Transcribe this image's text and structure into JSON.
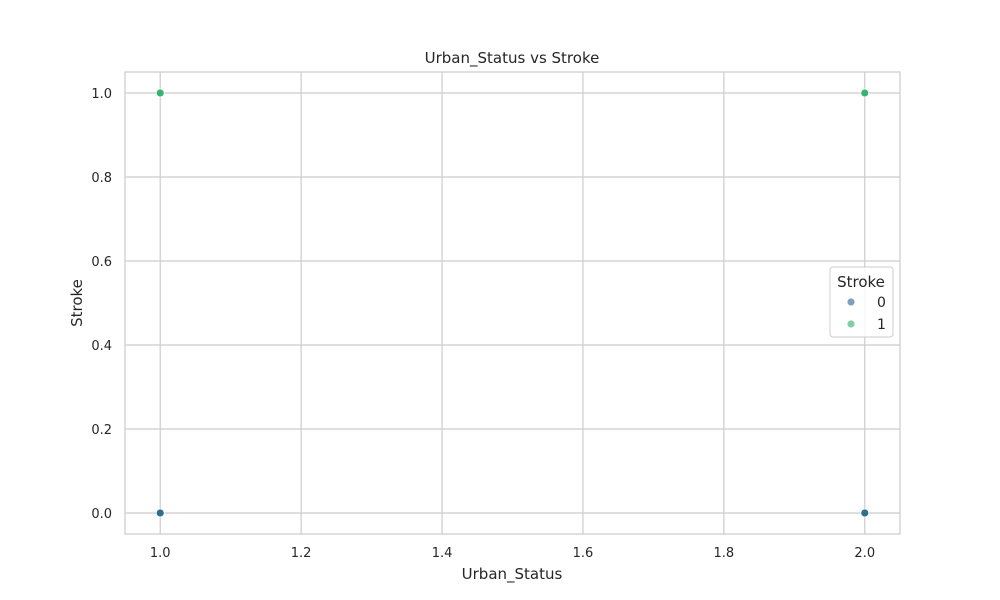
{
  "chart_data": {
    "type": "scatter",
    "title": "Urban_Status vs Stroke",
    "xlabel": "Urban_Status",
    "ylabel": "Stroke",
    "xlim": [
      0.95,
      2.05
    ],
    "ylim": [
      -0.05,
      1.05
    ],
    "xticks": [
      1.0,
      1.2,
      1.4,
      1.6,
      1.8,
      2.0
    ],
    "xtick_labels": [
      "1.0",
      "1.2",
      "1.4",
      "1.6",
      "1.8",
      "2.0"
    ],
    "yticks": [
      0.0,
      0.2,
      0.4,
      0.6,
      0.8,
      1.0
    ],
    "ytick_labels": [
      "0.0",
      "0.2",
      "0.4",
      "0.6",
      "0.8",
      "1.0"
    ],
    "grid": true,
    "legend": {
      "title": "Stroke",
      "placement": "center-right"
    },
    "series": [
      {
        "name": "0",
        "color": "#2c6f8e",
        "legend_color": "#7f9fba",
        "points": [
          {
            "x": 1.0,
            "y": 0.0
          },
          {
            "x": 2.0,
            "y": 0.0
          }
        ]
      },
      {
        "name": "1",
        "color": "#35b46e",
        "legend_color": "#7fd0a4",
        "points": [
          {
            "x": 1.0,
            "y": 1.0
          },
          {
            "x": 2.0,
            "y": 1.0
          }
        ]
      }
    ]
  }
}
